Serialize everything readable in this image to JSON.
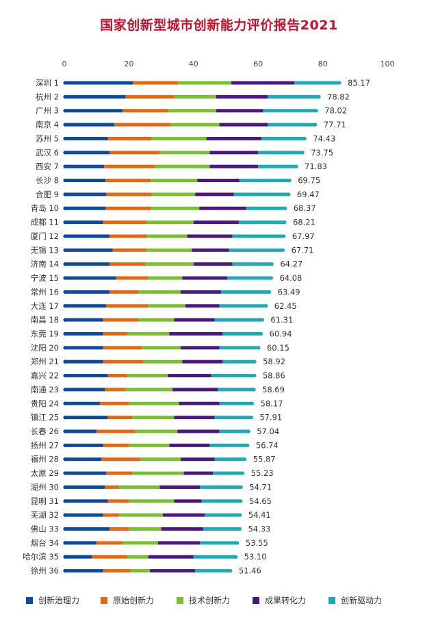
{
  "chart_data": {
    "type": "bar",
    "orientation": "horizontal",
    "stacked": true,
    "title": "国家创新型城市创新能力评价报告2021",
    "xlim": [
      0,
      100
    ],
    "xticks": [
      0,
      20,
      40,
      60,
      80,
      100
    ],
    "x_axis_position": "top",
    "grid": false,
    "legend_position": "bottom",
    "categories": [
      "深圳 1",
      "杭州 2",
      "广州 3",
      "南京 4",
      "苏州 5",
      "武汉 6",
      "西安 7",
      "长沙 8",
      "合肥 9",
      "青岛 10",
      "成都 11",
      "厦门 12",
      "无锡 13",
      "济南 14",
      "宁波 15",
      "常州 16",
      "大连 17",
      "南昌 18",
      "东莞 19",
      "沈阳 20",
      "郑州 21",
      "嘉兴 22",
      "南通 23",
      "贵阳 24",
      "镇江 25",
      "长春 26",
      "扬州 27",
      "福州 28",
      "太原 29",
      "湖州 30",
      "昆明 31",
      "芜湖 32",
      "佛山 33",
      "烟台 34",
      "哈尔滨 35",
      "徐州 36"
    ],
    "totals": [
      "85.17",
      "78.82",
      "78.02",
      "77.71",
      "74.43",
      "73.75",
      "71.83",
      "69.75",
      "69.47",
      "68.37",
      "68.21",
      "67.97",
      "67.71",
      "64.27",
      "64.08",
      "63.49",
      "62.45",
      "61.31",
      "60.94",
      "60.15",
      "58.92",
      "58.86",
      "58.69",
      "58.17",
      "57.91",
      "57.04",
      "56.74",
      "55.87",
      "55.23",
      "54.71",
      "54.65",
      "54.41",
      "54.33",
      "53.55",
      "53.10",
      "51.46"
    ],
    "series": [
      {
        "name": "创新治理力",
        "color": "#0b4a9c",
        "values": [
          21.2,
          19.0,
          18.0,
          15.5,
          13.5,
          14.0,
          12.3,
          12.7,
          13.0,
          12.8,
          12.0,
          14.0,
          15.0,
          14.0,
          16.0,
          14.0,
          13.0,
          12.0,
          12.0,
          12.0,
          12.0,
          13.5,
          12.5,
          11.0,
          13.5,
          10.0,
          12.0,
          11.5,
          13.0,
          12.5,
          13.5,
          12.0,
          14.0,
          10.0,
          8.5,
          12.0
        ]
      },
      {
        "name": "原始创新力",
        "color": "#e8670e",
        "values": [
          14.0,
          15.0,
          14.0,
          17.5,
          13.5,
          15.5,
          15.7,
          14.0,
          14.0,
          14.0,
          13.5,
          11.5,
          10.5,
          11.0,
          10.0,
          9.0,
          13.0,
          11.0,
          7.5,
          12.0,
          12.5,
          6.0,
          6.5,
          9.0,
          7.5,
          12.0,
          8.0,
          12.0,
          8.0,
          4.5,
          6.5,
          5.0,
          6.0,
          8.0,
          11.0,
          8.5
        ]
      },
      {
        "name": "技术创新力",
        "color": "#78c02d",
        "values": [
          16.5,
          13.0,
          15.0,
          15.0,
          17.0,
          15.5,
          17.0,
          14.5,
          13.5,
          15.0,
          14.5,
          12.5,
          14.0,
          15.0,
          10.5,
          13.0,
          11.5,
          11.0,
          13.0,
          12.0,
          12.0,
          12.5,
          14.5,
          15.5,
          13.0,
          13.0,
          12.5,
          12.5,
          16.0,
          12.5,
          14.0,
          13.5,
          10.0,
          11.0,
          6.5,
          6.0
        ]
      },
      {
        "name": "成果转化力",
        "color": "#4b1783",
        "values": [
          19.5,
          16.0,
          14.5,
          15.0,
          17.0,
          15.0,
          15.0,
          13.0,
          12.0,
          14.5,
          14.0,
          14.0,
          11.5,
          12.0,
          14.0,
          12.5,
          10.5,
          12.5,
          16.5,
          12.0,
          12.5,
          13.5,
          14.0,
          12.5,
          12.5,
          13.0,
          12.5,
          10.5,
          9.0,
          12.5,
          8.5,
          13.0,
          13.0,
          13.0,
          14.0,
          14.0
        ]
      },
      {
        "name": "创新驱动力",
        "color": "#1eaab4",
        "values": [
          13.97,
          15.82,
          16.52,
          14.71,
          13.43,
          13.75,
          11.83,
          15.55,
          16.97,
          12.07,
          14.21,
          15.97,
          16.71,
          12.27,
          13.58,
          14.99,
          14.45,
          14.81,
          11.94,
          12.15,
          9.92,
          13.36,
          11.19,
          10.17,
          11.41,
          9.04,
          11.74,
          9.37,
          9.23,
          12.71,
          12.15,
          10.91,
          11.33,
          11.55,
          13.1,
          10.96
        ]
      }
    ]
  }
}
